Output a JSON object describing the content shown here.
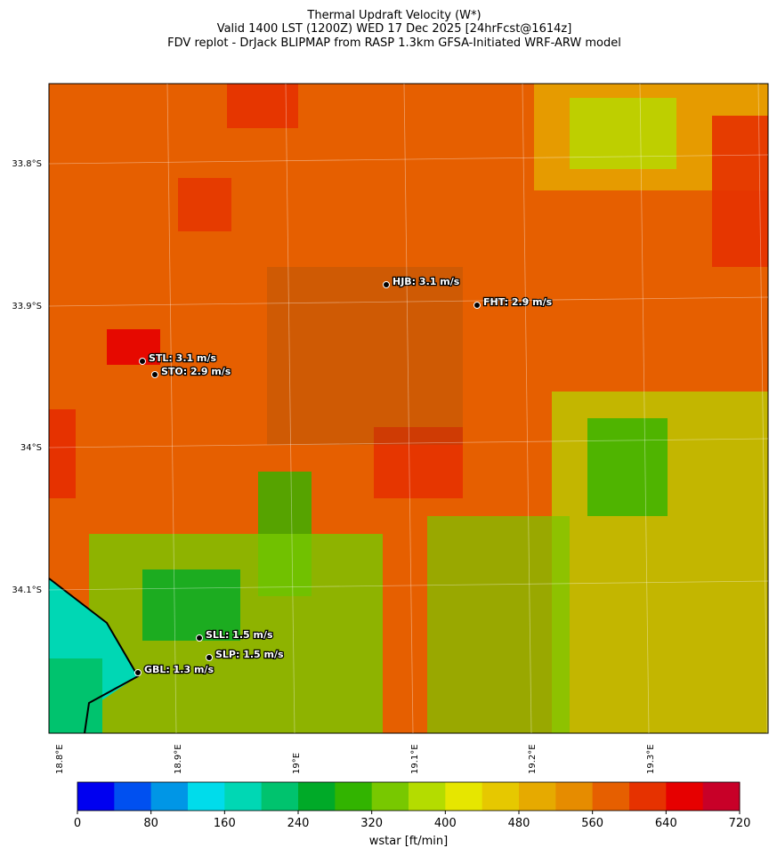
{
  "header": {
    "title_lines": [
      "Thermal Updraft Velocity (W*)",
      "Valid 1400 LST (1200Z) WED 17 Dec 2025 [24hrFcst@1614z]",
      "FDV replot - DrJack BLIPMAP from RASP 1.3km GFSA-Initiated WRF-ARW model"
    ]
  },
  "map": {
    "lat_labels": [
      "33.8°S",
      "33.9°S",
      "34°S",
      "34.1°S"
    ],
    "lon_labels": [
      "18.8°E",
      "18.9°E",
      "19°E",
      "19.1°E",
      "19.2°E",
      "19.3°E"
    ],
    "stations": [
      "HJB: 3.1 m/s",
      "FHT: 2.9 m/s",
      "STL: 3.1 m/s",
      "STO: 2.9 m/s",
      "SLL: 1.5 m/s",
      "SLP: 1.5 m/s",
      "GBL: 1.3 m/s"
    ]
  },
  "colorbar": {
    "range": [
      0,
      720
    ],
    "ticks": [
      0,
      80,
      160,
      240,
      320,
      400,
      480,
      560,
      640,
      720
    ],
    "label": "wstar [ft/min]",
    "colors": [
      "#0000f0",
      "#0050f0",
      "#0096e6",
      "#00dceb",
      "#00d7b4",
      "#00c36e",
      "#00aa28",
      "#32b400",
      "#78c800",
      "#b4dc00",
      "#e6e600",
      "#e6c800",
      "#e6aa00",
      "#e68c00",
      "#e65f00",
      "#e63200",
      "#e60000",
      "#c80028"
    ]
  }
}
